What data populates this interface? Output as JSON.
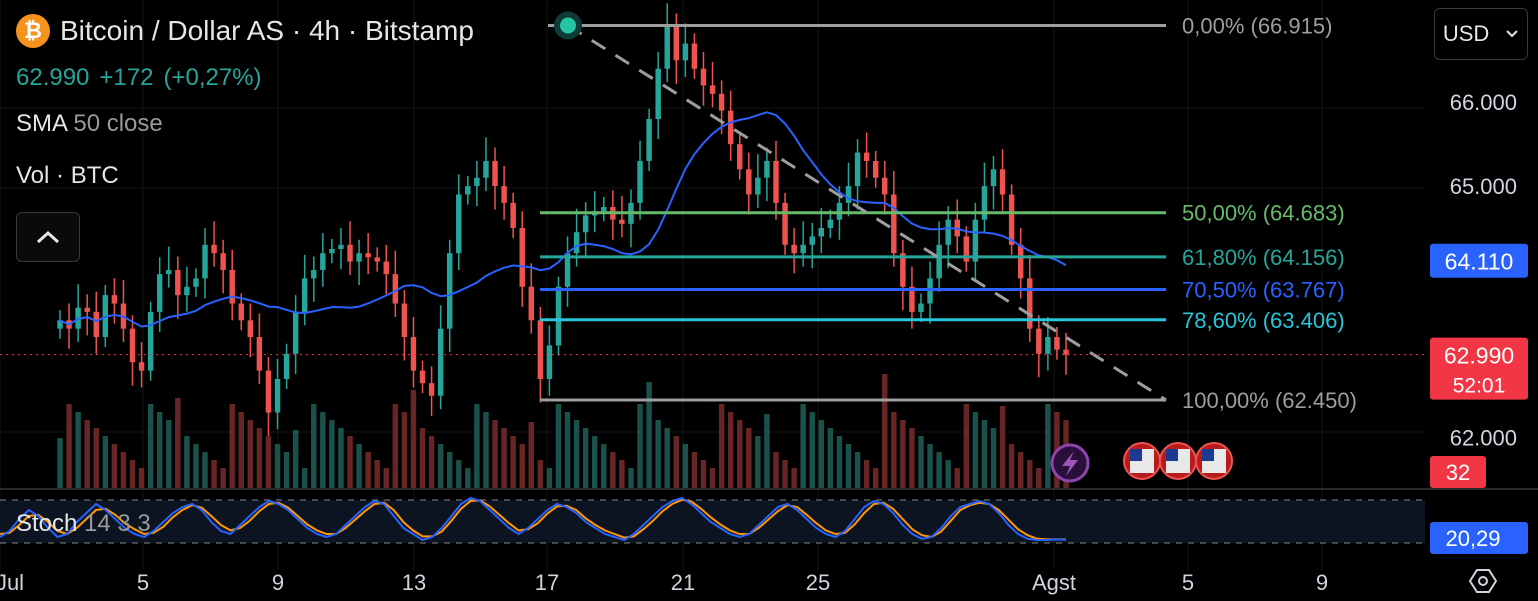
{
  "header": {
    "symbol_title": "Bitcoin / Dollar AS · 4h · Bitstamp",
    "icon": "bitcoin-icon",
    "last_price": "62.990",
    "change": "+172",
    "change_pct": "(+0,27%)"
  },
  "indicators": {
    "sma_label": "SMA",
    "sma_params": "50 close",
    "vol_label": "Vol · BTC",
    "stoch_label": "Stoch",
    "stoch_params": "14 3 3"
  },
  "controls": {
    "collapse_icon": "chevron-up-icon",
    "currency": "USD",
    "settings_icon": "settings-icon"
  },
  "colors": {
    "up": "#26a69a",
    "down": "#ef5350",
    "sma": "#2962ff",
    "fib_0": "#9e9e9e",
    "fib_50": "#66bb6a",
    "fib_618": "#26a69a",
    "fib_705": "#2962ff",
    "fib_786": "#26c6da",
    "fib_100": "#9e9e9e",
    "stoch_k": "#2962ff",
    "stoch_d": "#ff9800",
    "price_tag": "#f23645",
    "blue_tag": "#2962ff"
  },
  "chart_data": {
    "type": "candlestick",
    "ylim": [
      61400,
      67100
    ],
    "y_ticks": [
      "66.000",
      "65.000",
      "62.000"
    ],
    "x_ticks": [
      "Jul",
      "5",
      "9",
      "13",
      "17",
      "21",
      "25",
      "Agst",
      "5",
      "9"
    ],
    "fib_levels": [
      {
        "label": "0,00% (66.915)",
        "value": 66915
      },
      {
        "label": "50,00% (64.683)",
        "value": 64683
      },
      {
        "label": "61,80% (64.156)",
        "value": 64156
      },
      {
        "label": "70,50% (63.767)",
        "value": 63767
      },
      {
        "label": "78,60% (63.406)",
        "value": 63406
      },
      {
        "label": "100,00% (62.450)",
        "value": 62450
      }
    ],
    "price_tags": [
      {
        "label": "64.110",
        "value": 64110,
        "style": "blue"
      },
      {
        "label": "62.990",
        "value": 62990,
        "style": "red"
      },
      {
        "label": "52:01",
        "style": "red-countdown"
      },
      {
        "label": "32",
        "style": "red-volume"
      },
      {
        "label": "20,29",
        "style": "blue-stoch"
      }
    ],
    "current_price": 62990,
    "close_series": [
      63400,
      63300,
      63550,
      63500,
      63200,
      63700,
      63600,
      63300,
      62900,
      62800,
      63500,
      63950,
      64000,
      63700,
      63800,
      63900,
      64300,
      64200,
      64000,
      63600,
      63400,
      63200,
      62800,
      62300,
      62700,
      63000,
      63500,
      63900,
      64000,
      64200,
      64250,
      64300,
      64100,
      64200,
      64150,
      64100,
      63950,
      63600,
      63200,
      62800,
      62650,
      62500,
      63300,
      64200,
      64900,
      65000,
      65100,
      65300,
      65000,
      64800,
      64500,
      63800,
      63400,
      62700,
      63100,
      63800,
      64200,
      64450,
      64650,
      64700,
      64750,
      64600,
      64550,
      64800,
      65300,
      65800,
      66400,
      66900,
      66500,
      66700,
      66400,
      66200,
      66100,
      65900,
      65500,
      65200,
      64900,
      65100,
      65300,
      64800,
      64300,
      64200,
      64300,
      64400,
      64500,
      64600,
      64800,
      65000,
      65400,
      65300,
      65100,
      64900,
      64200,
      63800,
      63500,
      63600,
      63900,
      64300,
      64600,
      64400,
      64100,
      64600,
      65000,
      65200,
      64900,
      64300,
      63900,
      63300,
      63000,
      63200,
      63050,
      62990
    ],
    "stoch_k": [
      25,
      35,
      55,
      70,
      60,
      40,
      25,
      30,
      50,
      65,
      80,
      70,
      55,
      40,
      30,
      25,
      35,
      50,
      65,
      75,
      80,
      70,
      50,
      35,
      30,
      45,
      60,
      75,
      85,
      80,
      70,
      55,
      40,
      30,
      25,
      30,
      45,
      60,
      75,
      85,
      80,
      60,
      40,
      30,
      20,
      25,
      40,
      60,
      80,
      90,
      85,
      70,
      55,
      40,
      30,
      40,
      55,
      70,
      80,
      75,
      65,
      50,
      40,
      30,
      25,
      20,
      30,
      45,
      60,
      75,
      85,
      90,
      80,
      65,
      50,
      40,
      30,
      25,
      30,
      45,
      60,
      75,
      80,
      70,
      55,
      40,
      30,
      25,
      35,
      55,
      75,
      85,
      80,
      65,
      45,
      30,
      22,
      25,
      40,
      60,
      75,
      80,
      85,
      80,
      65,
      45,
      30,
      22,
      20,
      20,
      21,
      20.29
    ],
    "stoch_d": [
      30,
      32,
      45,
      60,
      62,
      50,
      35,
      30,
      40,
      55,
      70,
      72,
      62,
      48,
      38,
      30,
      32,
      42,
      58,
      70,
      78,
      74,
      60,
      45,
      36,
      40,
      52,
      68,
      80,
      82,
      74,
      60,
      46,
      36,
      30,
      30,
      40,
      54,
      68,
      80,
      82,
      70,
      50,
      36,
      26,
      26,
      34,
      52,
      72,
      85,
      86,
      76,
      62,
      48,
      36,
      38,
      48,
      64,
      76,
      77,
      70,
      56,
      45,
      36,
      30,
      24,
      26,
      38,
      52,
      68,
      80,
      87,
      84,
      72,
      58,
      46,
      36,
      30,
      30,
      40,
      54,
      68,
      78,
      75,
      62,
      48,
      36,
      30,
      32,
      46,
      65,
      80,
      82,
      72,
      55,
      38,
      28,
      25,
      34,
      52,
      70,
      78,
      82,
      80,
      70,
      54,
      38,
      28,
      22,
      21,
      21,
      21
    ]
  }
}
